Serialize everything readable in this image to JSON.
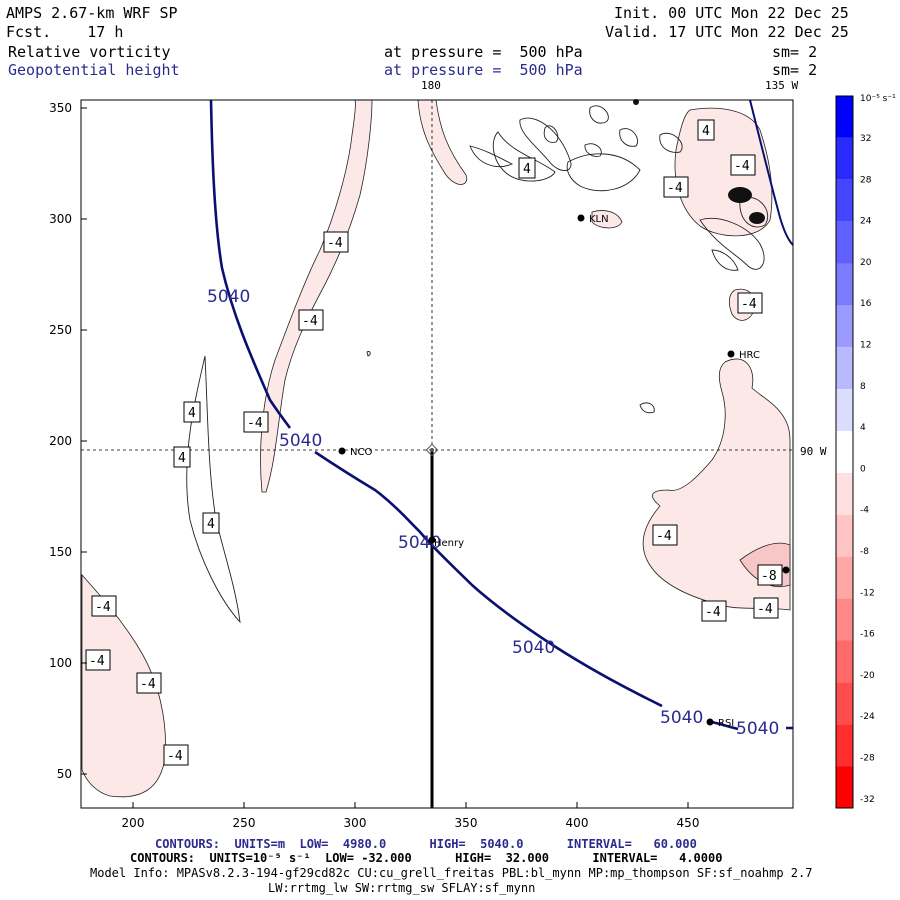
{
  "header": {
    "model": "AMPS 2.67-km WRF SP",
    "fcst": "Fcst.    17 h",
    "init": "Init. 00 UTC Mon 22 Dec 25",
    "valid": "Valid. 17 UTC Mon 22 Dec 25",
    "field1": "Relative vorticity",
    "field1_pressure": "at pressure =  500 hPa",
    "field1_sm": "sm= 2",
    "field2": "Geopotential height",
    "field2_pressure": "at pressure =  500 hPa",
    "field2_sm": "sm= 2"
  },
  "map": {
    "lon_180_label": "180",
    "lon_135w_label": "135 W",
    "lon_90w_label": "90 W",
    "x_ticks": [
      "200",
      "250",
      "300",
      "350",
      "400",
      "450"
    ],
    "y_ticks": [
      "350",
      "300",
      "250",
      "200",
      "150",
      "100",
      "50"
    ],
    "stations": [
      "KLN",
      "HRC",
      "NCO",
      "Henry",
      "RSI"
    ],
    "height_contour_label": "5040",
    "vorticity_labels": [
      "-4",
      "4",
      "-8"
    ],
    "colors": {
      "height_contour": "#0a1070",
      "neg_fill_light": "#fde8e8",
      "neg_fill_mid": "#f8c6c6"
    }
  },
  "colorbar": {
    "unit": "10⁻⁵ s⁻¹",
    "ticks": [
      "32",
      "28",
      "24",
      "20",
      "16",
      "12",
      "8",
      "4",
      "0",
      "-4",
      "-8",
      "-12",
      "-16",
      "-20",
      "-24",
      "-28",
      "-32"
    ],
    "colors": [
      "#0000ff",
      "#2a2aff",
      "#4545ff",
      "#6060ff",
      "#7b7bff",
      "#9a9aff",
      "#b9b9ff",
      "#dcdcff",
      "#ffffff",
      "#ffe0e0",
      "#ffc4c4",
      "#ffa6a6",
      "#ff8888",
      "#ff6a6a",
      "#ff4c4c",
      "#ff2d2d",
      "#ff0000"
    ]
  },
  "footer": {
    "line1_contours": "CONTOURS:  UNITS=m  LOW=  4980.0      HIGH=  5040.0      INTERVAL=   60.000",
    "line2_contours": "CONTOURS:  UNITS=10⁻⁵ s⁻¹  LOW= -32.000      HIGH=  32.000      INTERVAL=   4.0000",
    "model_info": "Model Info: MPASv8.2.3-194-gf29cd82c CU:cu_grell_freitas PBL:bl_mynn MP:mp_thompson SF:sf_noahmp 2.7",
    "model_info2": "LW:rrtmg_lw SW:rrtmg_sw SFLAY:sf_mynn"
  }
}
